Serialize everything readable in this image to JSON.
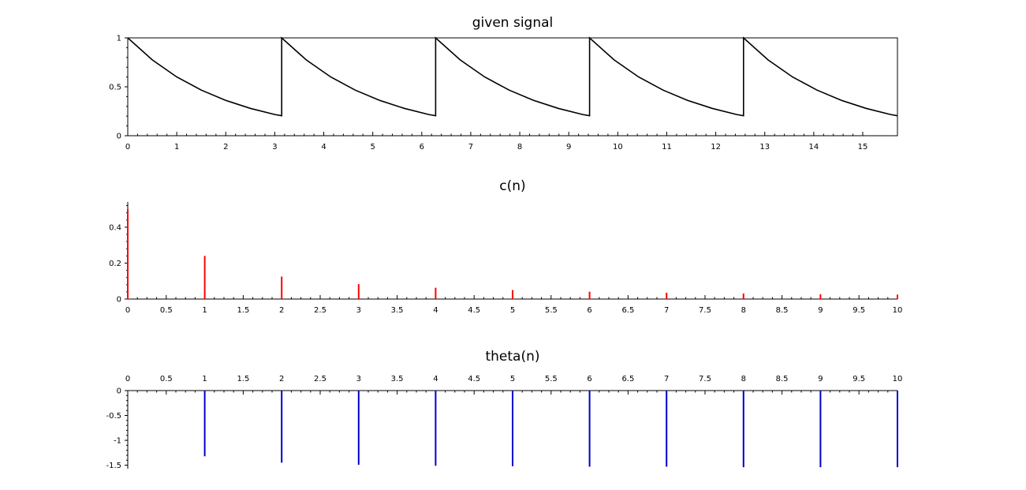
{
  "chart_data": [
    {
      "type": "line",
      "title": "given signal",
      "xlabel": "",
      "ylabel": "",
      "xlim": [
        0,
        15.708
      ],
      "ylim": [
        0,
        1
      ],
      "x_ticks": [
        "0",
        "1",
        "2",
        "3",
        "4",
        "5",
        "6",
        "7",
        "8",
        "9",
        "10",
        "11",
        "12",
        "13",
        "14",
        "15"
      ],
      "y_ticks": [
        "0",
        "0.5",
        "1"
      ],
      "series": [
        {
          "color": "#000000",
          "x": [
            0,
            0.5,
            1,
            1.5,
            2,
            2.5,
            3,
            3.1416,
            3.1416,
            3.6416,
            4.1416,
            4.6416,
            5.1416,
            5.6416,
            6.1416,
            6.2832,
            6.2832,
            6.7832,
            7.2832,
            7.7832,
            8.2832,
            8.7832,
            9.2832,
            9.4248,
            9.4248,
            9.9248,
            10.4248,
            10.9248,
            11.4248,
            11.9248,
            12.4248,
            12.5664,
            12.5664,
            13.0664,
            13.5664,
            14.0664,
            14.5664,
            15.0664,
            15.5664,
            15.708
          ],
          "y": [
            1,
            0.775,
            0.601,
            0.466,
            0.361,
            0.28,
            0.217,
            0.204,
            1,
            0.775,
            0.601,
            0.466,
            0.361,
            0.28,
            0.217,
            0.204,
            1,
            0.775,
            0.601,
            0.466,
            0.361,
            0.28,
            0.217,
            0.204,
            1,
            0.775,
            0.601,
            0.466,
            0.361,
            0.28,
            0.217,
            0.204,
            1,
            0.775,
            0.601,
            0.466,
            0.361,
            0.28,
            0.217,
            0.204
          ]
        }
      ],
      "grid": false
    },
    {
      "type": "stem",
      "title": "c(n)",
      "xlabel": "",
      "ylabel": "",
      "xlim": [
        0,
        10
      ],
      "ylim": [
        0,
        0.54
      ],
      "x_ticks": [
        "0",
        "0.5",
        "1",
        "1.5",
        "2",
        "2.5",
        "3",
        "3.5",
        "4",
        "4.5",
        "5",
        "5.5",
        "6",
        "6.5",
        "7",
        "7.5",
        "8",
        "8.5",
        "9",
        "9.5",
        "10"
      ],
      "y_ticks": [
        "0",
        "0.2",
        "0.4"
      ],
      "series": [
        {
          "color": "#ff0000",
          "x": [
            0,
            1,
            2,
            3,
            4,
            5,
            6,
            7,
            8,
            9,
            10
          ],
          "values": [
            0.5,
            0.24,
            0.125,
            0.083,
            0.063,
            0.05,
            0.041,
            0.035,
            0.031,
            0.027,
            0.025
          ]
        }
      ],
      "grid": false
    },
    {
      "type": "stem",
      "title": "theta(n)",
      "xlabel": "",
      "ylabel": "",
      "xlim": [
        0,
        10
      ],
      "ylim": [
        -1.57,
        0
      ],
      "x_axis_position": "top",
      "x_ticks": [
        "0",
        "0.5",
        "1",
        "1.5",
        "2",
        "2.5",
        "3",
        "3.5",
        "4",
        "4.5",
        "5",
        "5.5",
        "6",
        "6.5",
        "7",
        "7.5",
        "8",
        "8.5",
        "9",
        "9.5",
        "10"
      ],
      "y_ticks": [
        "0",
        "-0.5",
        "-1",
        "-1.5"
      ],
      "series": [
        {
          "color": "#0000cc",
          "x": [
            1,
            2,
            3,
            4,
            5,
            6,
            7,
            8,
            9,
            10
          ],
          "values": [
            -1.32,
            -1.45,
            -1.49,
            -1.51,
            -1.52,
            -1.53,
            -1.53,
            -1.54,
            -1.54,
            -1.54
          ]
        }
      ],
      "grid": false
    }
  ]
}
